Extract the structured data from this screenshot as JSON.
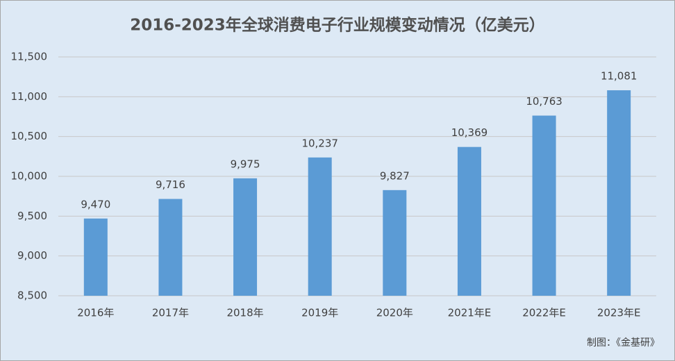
{
  "chart_data": {
    "type": "bar",
    "title": "2016-2023年全球消费电子行业规模变动情况（亿美元）",
    "categories": [
      "2016年",
      "2017年",
      "2018年",
      "2019年",
      "2020年",
      "2021年E",
      "2022年E",
      "2023年E"
    ],
    "values": [
      9470,
      9716,
      9975,
      10237,
      9827,
      10369,
      10763,
      11081
    ],
    "value_labels": [
      "9,470",
      "9,716",
      "9,975",
      "10,237",
      "9,827",
      "10,369",
      "10,763",
      "11,081"
    ],
    "color": "#5b9bd5",
    "ylim": [
      8500,
      11500
    ],
    "yticks": [
      {
        "value": 8500,
        "label": "8,500"
      },
      {
        "value": 9000,
        "label": "9,000"
      },
      {
        "value": 9500,
        "label": "9,500"
      },
      {
        "value": 10000,
        "label": "10,000"
      },
      {
        "value": 10500,
        "label": "10,500"
      },
      {
        "value": 11000,
        "label": "11,000"
      },
      {
        "value": 11500,
        "label": "11,500"
      }
    ],
    "grid": true,
    "source": "制图：《金基研》"
  }
}
